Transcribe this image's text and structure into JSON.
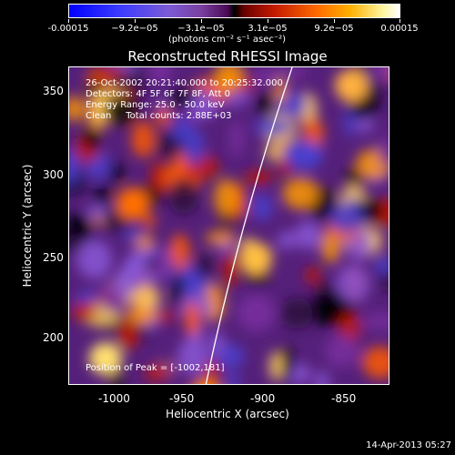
{
  "colorbar": {
    "tick_labels": [
      "-0.00015",
      "−9.2e−05",
      "−3.1e−05",
      "3.1e−05",
      "9.2e−05",
      "0.00015"
    ],
    "units": "(photons cm⁻² s⁻¹ asec⁻²)"
  },
  "title": "Reconstructed RHESSI Image",
  "info": {
    "time_range": "26-Oct-2002 20:21:40.000 to 20:25:32.000",
    "detectors": "Detectors: 4F 5F 6F 7F 8F, Att 0",
    "energy": "Energy Range: 25.0 - 50.0 keV",
    "method": "Clean     Total counts: 2.88E+03"
  },
  "peak_label": "Position of Peak = [-1002,181]",
  "axes": {
    "x_label": "Heliocentric X (arcsec)",
    "y_label": "Heliocentric Y (arcsec)",
    "x_ticks": [
      "-1000",
      "-950",
      "-900",
      "-850"
    ],
    "y_ticks": [
      "200",
      "250",
      "300",
      "350"
    ]
  },
  "footer": "14-Apr-2013 05:27"
}
